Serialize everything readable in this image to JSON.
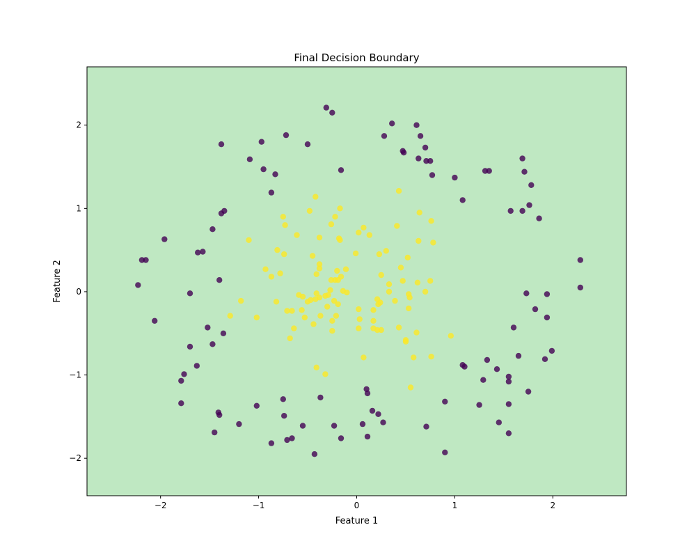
{
  "chart_data": {
    "type": "scatter",
    "title": "Final Decision Boundary",
    "xlabel": "Feature 1",
    "ylabel": "Feature 2",
    "xlim": [
      -2.75,
      2.75
    ],
    "ylim": [
      -2.45,
      2.7
    ],
    "xticks": [
      -2,
      -1,
      0,
      1,
      2
    ],
    "yticks": [
      -2,
      -1,
      0,
      1,
      2
    ],
    "tick_labels": [
      "−2",
      "−1",
      "0",
      "1",
      "2"
    ],
    "grid": false,
    "background_color": "#bfe8c2",
    "series": [
      {
        "color": "#440154",
        "points": [
          [
            -0.31,
            2.21
          ],
          [
            -0.25,
            2.15
          ],
          [
            0.36,
            2.02
          ],
          [
            0.61,
            2.0
          ],
          [
            0.65,
            1.87
          ],
          [
            0.28,
            1.87
          ],
          [
            -0.72,
            1.88
          ],
          [
            -0.97,
            1.8
          ],
          [
            -0.5,
            1.77
          ],
          [
            -1.38,
            1.77
          ],
          [
            0.47,
            1.69
          ],
          [
            0.48,
            1.67
          ],
          [
            0.7,
            1.73
          ],
          [
            -1.09,
            1.59
          ],
          [
            0.63,
            1.6
          ],
          [
            0.71,
            1.57
          ],
          [
            0.75,
            1.57
          ],
          [
            1.69,
            1.6
          ],
          [
            -0.95,
            1.47
          ],
          [
            -0.83,
            1.41
          ],
          [
            -0.16,
            1.46
          ],
          [
            0.77,
            1.4
          ],
          [
            1.0,
            1.37
          ],
          [
            1.31,
            1.45
          ],
          [
            1.35,
            1.45
          ],
          [
            1.71,
            1.44
          ],
          [
            1.78,
            1.28
          ],
          [
            -0.87,
            1.19
          ],
          [
            1.08,
            1.1
          ],
          [
            1.57,
            0.97
          ],
          [
            1.69,
            0.97
          ],
          [
            1.76,
            1.04
          ],
          [
            1.86,
            0.88
          ],
          [
            -1.35,
            0.97
          ],
          [
            -1.38,
            0.94
          ],
          [
            -1.47,
            0.75
          ],
          [
            -1.96,
            0.63
          ],
          [
            -1.62,
            0.47
          ],
          [
            -1.57,
            0.48
          ],
          [
            -2.19,
            0.38
          ],
          [
            -2.15,
            0.38
          ],
          [
            2.28,
            0.38
          ],
          [
            -1.4,
            0.14
          ],
          [
            -2.23,
            0.08
          ],
          [
            2.28,
            0.05
          ],
          [
            -1.7,
            -0.02
          ],
          [
            1.73,
            -0.02
          ],
          [
            1.94,
            -0.03
          ],
          [
            1.82,
            -0.21
          ],
          [
            -2.06,
            -0.35
          ],
          [
            1.94,
            -0.31
          ],
          [
            -1.52,
            -0.43
          ],
          [
            1.6,
            -0.43
          ],
          [
            -1.36,
            -0.5
          ],
          [
            -1.47,
            -0.63
          ],
          [
            -1.7,
            -0.66
          ],
          [
            1.99,
            -0.71
          ],
          [
            1.65,
            -0.77
          ],
          [
            1.33,
            -0.82
          ],
          [
            1.92,
            -0.81
          ],
          [
            -1.63,
            -0.89
          ],
          [
            1.08,
            -0.88
          ],
          [
            1.1,
            -0.9
          ],
          [
            1.43,
            -0.93
          ],
          [
            -1.76,
            -0.99
          ],
          [
            1.55,
            -1.02
          ],
          [
            -1.79,
            -1.07
          ],
          [
            1.29,
            -1.06
          ],
          [
            1.55,
            -1.08
          ],
          [
            0.1,
            -1.17
          ],
          [
            0.11,
            -1.22
          ],
          [
            1.75,
            -1.2
          ],
          [
            -0.75,
            -1.29
          ],
          [
            -0.37,
            -1.27
          ],
          [
            0.9,
            -1.32
          ],
          [
            -1.79,
            -1.34
          ],
          [
            -1.02,
            -1.37
          ],
          [
            1.25,
            -1.36
          ],
          [
            1.55,
            -1.35
          ],
          [
            0.16,
            -1.43
          ],
          [
            -1.41,
            -1.45
          ],
          [
            0.22,
            -1.47
          ],
          [
            -1.4,
            -1.48
          ],
          [
            -0.74,
            -1.49
          ],
          [
            1.45,
            -1.57
          ],
          [
            0.27,
            -1.57
          ],
          [
            -1.2,
            -1.59
          ],
          [
            0.06,
            -1.59
          ],
          [
            -0.55,
            -1.61
          ],
          [
            -0.23,
            -1.61
          ],
          [
            0.71,
            -1.62
          ],
          [
            -1.45,
            -1.69
          ],
          [
            1.55,
            -1.7
          ],
          [
            0.11,
            -1.74
          ],
          [
            -0.16,
            -1.76
          ],
          [
            -0.66,
            -1.76
          ],
          [
            -0.71,
            -1.78
          ],
          [
            -0.87,
            -1.82
          ],
          [
            -0.43,
            -1.95
          ],
          [
            0.9,
            -1.93
          ]
        ]
      },
      {
        "color": "#fde725",
        "points": [
          [
            0.43,
            1.21
          ],
          [
            -0.42,
            1.14
          ],
          [
            -0.17,
            1.0
          ],
          [
            -0.48,
            0.97
          ],
          [
            0.64,
            0.95
          ],
          [
            -0.75,
            0.9
          ],
          [
            -0.22,
            0.9
          ],
          [
            0.76,
            0.85
          ],
          [
            -0.73,
            0.8
          ],
          [
            -0.26,
            0.81
          ],
          [
            0.41,
            0.79
          ],
          [
            0.07,
            0.77
          ],
          [
            0.13,
            0.68
          ],
          [
            -0.61,
            0.68
          ],
          [
            0.02,
            0.71
          ],
          [
            -0.38,
            0.65
          ],
          [
            -0.18,
            0.64
          ],
          [
            -0.17,
            0.62
          ],
          [
            -1.1,
            0.62
          ],
          [
            0.63,
            0.61
          ],
          [
            0.78,
            0.59
          ],
          [
            -0.81,
            0.5
          ],
          [
            0.3,
            0.49
          ],
          [
            -0.74,
            0.45
          ],
          [
            0.23,
            0.45
          ],
          [
            -0.45,
            0.43
          ],
          [
            -0.01,
            0.46
          ],
          [
            0.52,
            0.41
          ],
          [
            -0.38,
            0.33
          ],
          [
            -0.38,
            0.28
          ],
          [
            0.45,
            0.29
          ],
          [
            -0.93,
            0.27
          ],
          [
            -0.2,
            0.25
          ],
          [
            -0.11,
            0.27
          ],
          [
            -0.78,
            0.22
          ],
          [
            -0.41,
            0.21
          ],
          [
            -0.87,
            0.18
          ],
          [
            0.25,
            0.2
          ],
          [
            -0.16,
            0.18
          ],
          [
            0.47,
            0.13
          ],
          [
            -0.22,
            0.14
          ],
          [
            0.62,
            0.11
          ],
          [
            0.75,
            0.13
          ],
          [
            -0.26,
            0.14
          ],
          [
            0.33,
            0.09
          ],
          [
            -0.14,
            0.01
          ],
          [
            -0.19,
            0.14
          ],
          [
            -0.27,
            0.02
          ],
          [
            0.33,
            0.0
          ],
          [
            0.7,
            0.0
          ],
          [
            -0.1,
            -0.01
          ],
          [
            -0.41,
            -0.02
          ],
          [
            -0.32,
            -0.05
          ],
          [
            -0.59,
            -0.04
          ],
          [
            -0.55,
            -0.06
          ],
          [
            -0.38,
            -0.07
          ],
          [
            0.53,
            -0.03
          ],
          [
            -0.47,
            -0.1
          ],
          [
            -0.42,
            -0.09
          ],
          [
            -0.29,
            -0.04
          ],
          [
            -0.5,
            -0.12
          ],
          [
            0.54,
            -0.07
          ],
          [
            0.21,
            -0.09
          ],
          [
            -0.82,
            -0.12
          ],
          [
            -1.18,
            -0.11
          ],
          [
            0.39,
            -0.11
          ],
          [
            -0.23,
            -0.11
          ],
          [
            0.24,
            -0.13
          ],
          [
            -0.19,
            -0.15
          ],
          [
            -0.3,
            -0.18
          ],
          [
            0.53,
            -0.2
          ],
          [
            0.22,
            -0.15
          ],
          [
            -0.56,
            -0.22
          ],
          [
            -0.71,
            -0.23
          ],
          [
            0.02,
            -0.21
          ],
          [
            -0.66,
            -0.23
          ],
          [
            0.17,
            -0.22
          ],
          [
            -0.37,
            -0.29
          ],
          [
            -1.29,
            -0.29
          ],
          [
            -0.21,
            -0.29
          ],
          [
            -1.02,
            -0.31
          ],
          [
            -0.53,
            -0.31
          ],
          [
            0.03,
            -0.33
          ],
          [
            -0.25,
            -0.35
          ],
          [
            0.17,
            -0.35
          ],
          [
            -0.44,
            -0.39
          ],
          [
            0.43,
            -0.43
          ],
          [
            -0.64,
            -0.44
          ],
          [
            0.02,
            -0.44
          ],
          [
            0.17,
            -0.44
          ],
          [
            0.21,
            -0.46
          ],
          [
            -0.25,
            -0.47
          ],
          [
            0.25,
            -0.46
          ],
          [
            0.61,
            -0.49
          ],
          [
            0.96,
            -0.53
          ],
          [
            -0.68,
            -0.56
          ],
          [
            0.5,
            -0.58
          ],
          [
            0.5,
            -0.6
          ],
          [
            0.07,
            -0.79
          ],
          [
            0.58,
            -0.79
          ],
          [
            0.76,
            -0.78
          ],
          [
            -0.41,
            -0.91
          ],
          [
            -0.32,
            -0.99
          ],
          [
            0.55,
            -1.15
          ]
        ]
      }
    ]
  }
}
